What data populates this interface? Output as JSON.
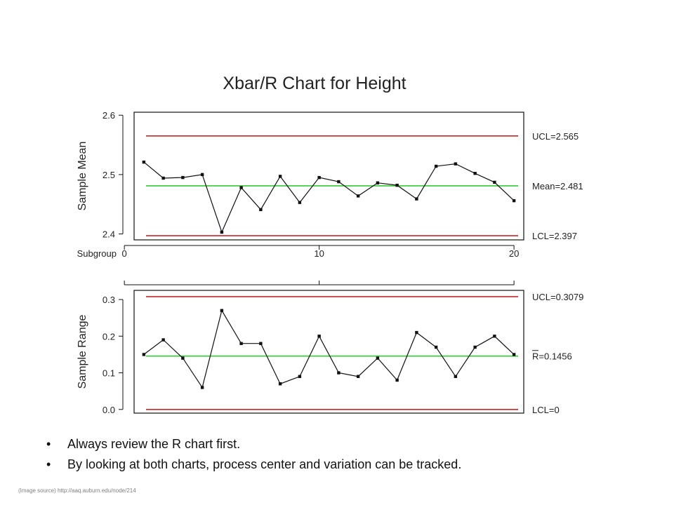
{
  "chart_data": [
    {
      "type": "line",
      "title": "Xbar/R Chart for Height",
      "xlabel": "Subgroup",
      "ylabel": "Sample Mean",
      "x": [
        1,
        2,
        3,
        4,
        5,
        6,
        7,
        8,
        9,
        10,
        11,
        12,
        13,
        14,
        15,
        16,
        17,
        18,
        19,
        20
      ],
      "x_ticks": [
        0,
        10,
        20
      ],
      "xlim": [
        0.5,
        20.5
      ],
      "y_ticks": [
        "2.4",
        "2.5",
        "2.6"
      ],
      "ylim": [
        2.39,
        2.605
      ],
      "series": [
        {
          "values": [
            2.521,
            2.494,
            2.495,
            2.5,
            2.403,
            2.478,
            2.441,
            2.497,
            2.453,
            2.495,
            2.488,
            2.464,
            2.486,
            2.482,
            2.459,
            2.514,
            2.518,
            2.502,
            2.487,
            2.456
          ]
        }
      ],
      "limits": {
        "ucl": {
          "value": 2.565,
          "label": "UCL=2.565"
        },
        "center": {
          "value": 2.481,
          "label": "Mean=2.481"
        },
        "lcl": {
          "value": 2.397,
          "label": "LCL=2.397"
        }
      },
      "grid": false
    },
    {
      "type": "line",
      "ylabel": "Sample Range",
      "x": [
        1,
        2,
        3,
        4,
        5,
        6,
        7,
        8,
        9,
        10,
        11,
        12,
        13,
        14,
        15,
        16,
        17,
        18,
        19,
        20
      ],
      "x_ticks": [
        0,
        10,
        20
      ],
      "xlim": [
        0.5,
        20.5
      ],
      "y_ticks": [
        "0.0",
        "0.1",
        "0.2",
        "0.3"
      ],
      "ylim": [
        -0.01,
        0.325
      ],
      "series": [
        {
          "values": [
            0.15,
            0.19,
            0.14,
            0.06,
            0.27,
            0.18,
            0.18,
            0.07,
            0.09,
            0.2,
            0.1,
            0.09,
            0.14,
            0.08,
            0.21,
            0.17,
            0.09,
            0.17,
            0.2,
            0.15
          ]
        }
      ],
      "limits": {
        "ucl": {
          "value": 0.3079,
          "label": "UCL=0.3079"
        },
        "center": {
          "value": 0.1456,
          "label": "R=0.1456"
        },
        "lcl": {
          "value": 0,
          "label": "LCL=0"
        }
      },
      "grid": false
    }
  ],
  "colors": {
    "limit_line": "#c0282d",
    "center_line": "#33cc33",
    "data_line": "#111111"
  },
  "bullets": [
    "Always review the R chart first.",
    "By looking at both charts, process center and variation can be tracked."
  ],
  "bullet_glyph": "•",
  "source": "(Image source) http://aaq.auburn.edu/node/214"
}
